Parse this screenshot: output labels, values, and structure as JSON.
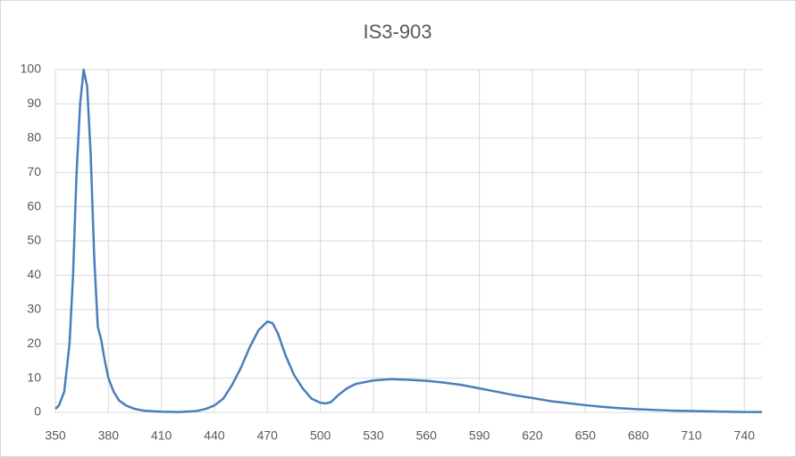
{
  "chart_data": {
    "type": "line",
    "title": "IS3-903",
    "x": [
      350,
      352,
      355,
      358,
      360,
      362,
      364,
      366,
      368,
      370,
      372,
      374,
      376,
      378,
      380,
      383,
      386,
      390,
      395,
      400,
      410,
      420,
      430,
      435,
      440,
      445,
      450,
      455,
      460,
      465,
      470,
      473,
      476,
      480,
      485,
      490,
      495,
      500,
      503,
      506,
      510,
      515,
      520,
      530,
      540,
      550,
      560,
      570,
      580,
      590,
      600,
      610,
      620,
      630,
      640,
      650,
      660,
      670,
      680,
      690,
      700,
      710,
      720,
      730,
      740,
      750
    ],
    "series": [
      {
        "name": "IS3-903",
        "color": "#4a7ebb",
        "values": [
          1,
          2,
          6,
          20,
          40,
          70,
          90,
          100,
          95,
          75,
          45,
          25,
          21,
          15,
          10,
          6,
          3.5,
          2,
          1,
          0.5,
          0.2,
          0.1,
          0.4,
          1,
          2,
          4,
          8,
          13,
          19,
          24,
          26.5,
          26,
          23,
          17,
          11,
          7,
          4,
          2.8,
          2.6,
          3,
          5,
          7,
          8.3,
          9.3,
          9.7,
          9.5,
          9.2,
          8.7,
          8,
          7,
          6,
          5,
          4.2,
          3.3,
          2.7,
          2.1,
          1.6,
          1.2,
          0.9,
          0.7,
          0.5,
          0.4,
          0.3,
          0.2,
          0.1,
          0.1
        ]
      }
    ],
    "xlim": [
      350,
      750
    ],
    "xticks": [
      350,
      380,
      410,
      440,
      470,
      500,
      530,
      560,
      590,
      620,
      650,
      680,
      710,
      740
    ],
    "ylim": [
      0,
      100
    ],
    "yticks": [
      0,
      10,
      20,
      30,
      40,
      50,
      60,
      70,
      80,
      90,
      100
    ],
    "grid": true
  }
}
